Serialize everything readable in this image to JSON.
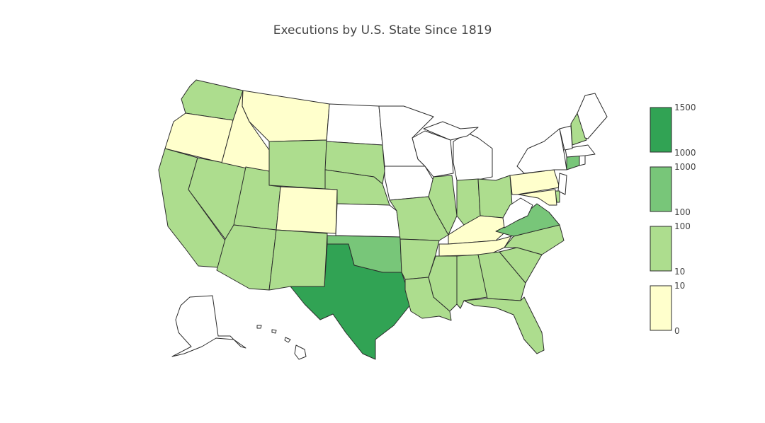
{
  "title": "Executions by U.S. State Since 1819",
  "colors": {
    "none": "#ffffff",
    "bin_0_10": "#ffffcc",
    "bin_10_100": "#addd8e",
    "bin_100_1000": "#78c679",
    "bin_1000_1500": "#31a354"
  },
  "legend": [
    {
      "bin": "bin_1000_1500",
      "top_label": "1500",
      "bottom_label": "1000"
    },
    {
      "bin": "bin_100_1000",
      "top_label": "1000",
      "bottom_label": "100"
    },
    {
      "bin": "bin_10_100",
      "top_label": "100",
      "bottom_label": "10"
    },
    {
      "bin": "bin_0_10",
      "top_label": "10",
      "bottom_label": "0"
    }
  ],
  "chart_data": {
    "type": "choropleth",
    "title": "Executions by U.S. State Since 1819",
    "scale": [
      {
        "min": 0,
        "max": 10,
        "color": "#ffffcc"
      },
      {
        "min": 10,
        "max": 100,
        "color": "#addd8e"
      },
      {
        "min": 100,
        "max": 1000,
        "color": "#78c679"
      },
      {
        "min": 1000,
        "max": 1500,
        "color": "#31a354"
      }
    ],
    "state_bins": {
      "WA": "10-100",
      "OR": "0-10",
      "CA": "10-100",
      "NV": "10-100",
      "ID": "0-10",
      "MT": "0-10",
      "WY": "10-100",
      "UT": "10-100",
      "AZ": "10-100",
      "CO": "0-10",
      "NM": "10-100",
      "ND": "none",
      "SD": "10-100",
      "NE": "10-100",
      "KS": "none",
      "OK": "100-1000",
      "TX": "1000-1500",
      "MN": "none",
      "IA": "none",
      "MO": "10-100",
      "AR": "10-100",
      "LA": "10-100",
      "WI": "none",
      "IL": "10-100",
      "MI": "none",
      "IN": "10-100",
      "OH": "10-100",
      "KY": "0-10",
      "TN": "0-10",
      "MS": "10-100",
      "AL": "10-100",
      "GA": "10-100",
      "FL": "10-100",
      "SC": "10-100",
      "NC": "10-100",
      "VA": "100-1000",
      "WV": "none",
      "PA": "0-10",
      "NY": "none",
      "VT": "none",
      "NH": "10-100",
      "ME": "none",
      "MA": "none",
      "RI": "none",
      "CT": "100-1000",
      "NJ": "none",
      "DE": "10-100",
      "MD": "0-10",
      "AK": "none",
      "HI": "none"
    }
  }
}
